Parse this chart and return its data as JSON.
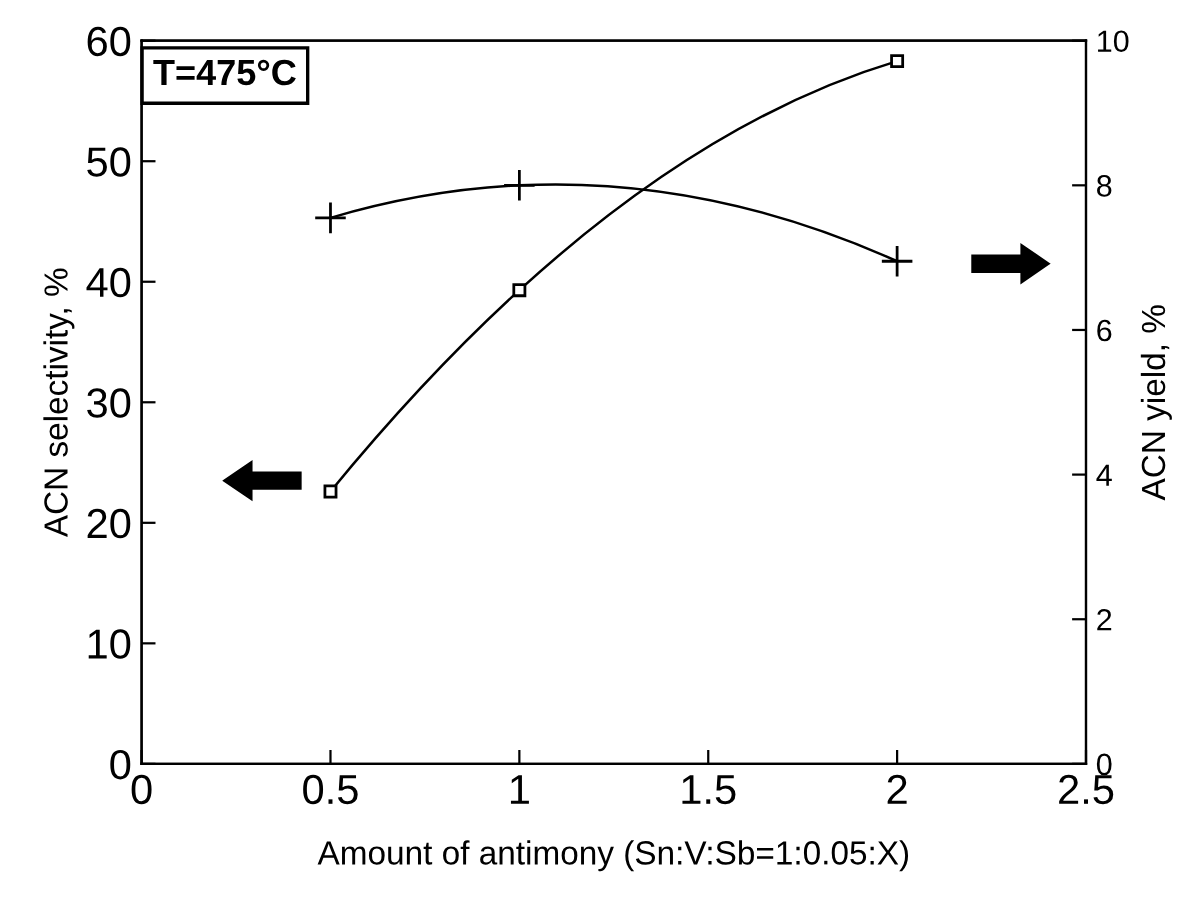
{
  "chart_data": {
    "type": "line",
    "xlabel": "Amount of antimony (Sn:V:Sb=1:0.05:X)",
    "ylabel": "ACN selectivity, %",
    "y2label": "ACN yield, %",
    "annotations": [
      "T=475°C"
    ],
    "xlim": [
      0,
      2.5
    ],
    "xticks": [
      0,
      0.5,
      1,
      1.5,
      2,
      2.5
    ],
    "ylim": [
      0,
      60
    ],
    "yticks": [
      0,
      10,
      20,
      30,
      40,
      50,
      60
    ],
    "y2lim": [
      0,
      10
    ],
    "y2ticks": [
      0,
      2,
      4,
      6,
      8,
      10
    ],
    "grid": false,
    "legend": false,
    "series": [
      {
        "color": "#000000",
        "marker": "square",
        "x": [
          0.5,
          1,
          2
        ],
        "values": [
          22.6,
          39.3,
          58.3
        ]
      },
      {
        "color": "#000000",
        "marker": "cross",
        "axis": "y2",
        "x": [
          0.5,
          1,
          2
        ],
        "values": [
          7.55,
          8.0,
          6.95
        ]
      }
    ]
  }
}
